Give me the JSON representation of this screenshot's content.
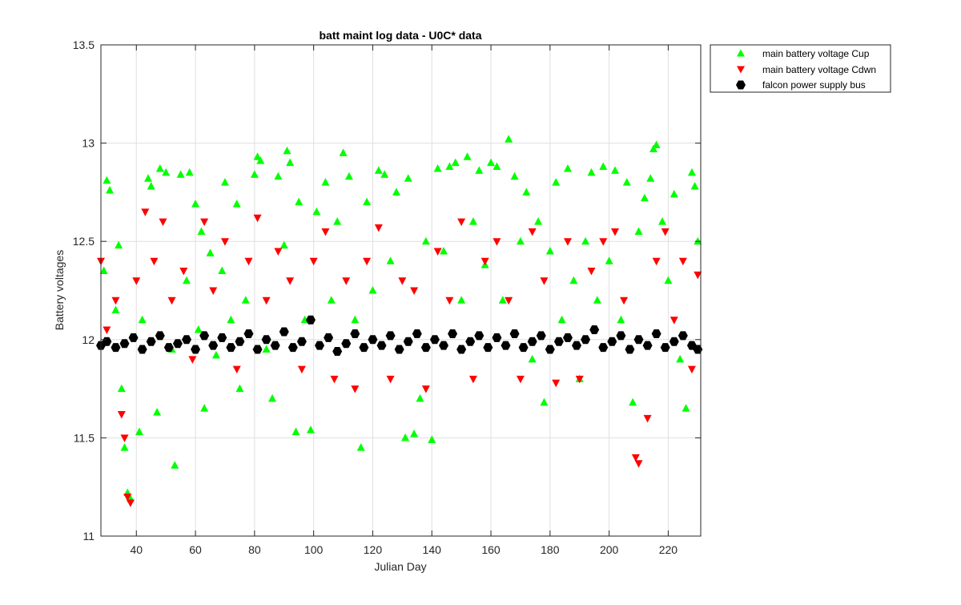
{
  "chart_data": {
    "type": "scatter",
    "title": "batt maint log data - U0C* data",
    "xlabel": "Julian Day",
    "ylabel": "Battery voltages",
    "xlim": [
      28,
      231
    ],
    "ylim": [
      11,
      13.5
    ],
    "xticks": [
      "40",
      "60",
      "80",
      "100",
      "120",
      "140",
      "160",
      "180",
      "200",
      "220"
    ],
    "yticks": [
      "11",
      "11.5",
      "12",
      "12.5",
      "13",
      "13.5"
    ],
    "grid": true,
    "legend_position": "outside-top-right",
    "series": [
      {
        "name": "main battery voltage Cup",
        "marker": "triangle-up",
        "color": "#00ff00",
        "points": [
          [
            29,
            12.35
          ],
          [
            30,
            12.81
          ],
          [
            31,
            12.76
          ],
          [
            33,
            12.15
          ],
          [
            34,
            12.48
          ],
          [
            35,
            11.75
          ],
          [
            36,
            11.45
          ],
          [
            37,
            11.22
          ],
          [
            38,
            11.19
          ],
          [
            41,
            11.53
          ],
          [
            42,
            12.1
          ],
          [
            44,
            12.82
          ],
          [
            45,
            12.78
          ],
          [
            47,
            11.63
          ],
          [
            48,
            12.87
          ],
          [
            50,
            12.85
          ],
          [
            52,
            11.95
          ],
          [
            53,
            11.36
          ],
          [
            55,
            12.84
          ],
          [
            57,
            12.3
          ],
          [
            58,
            12.85
          ],
          [
            60,
            12.69
          ],
          [
            61,
            12.05
          ],
          [
            62,
            12.55
          ],
          [
            63,
            11.65
          ],
          [
            65,
            12.44
          ],
          [
            67,
            11.92
          ],
          [
            69,
            12.35
          ],
          [
            70,
            12.8
          ],
          [
            72,
            12.1
          ],
          [
            74,
            12.69
          ],
          [
            75,
            11.75
          ],
          [
            77,
            12.2
          ],
          [
            80,
            12.84
          ],
          [
            81,
            12.93
          ],
          [
            82,
            12.91
          ],
          [
            84,
            11.95
          ],
          [
            86,
            11.7
          ],
          [
            88,
            12.83
          ],
          [
            90,
            12.48
          ],
          [
            91,
            12.96
          ],
          [
            92,
            12.9
          ],
          [
            94,
            11.53
          ],
          [
            95,
            12.7
          ],
          [
            97,
            12.1
          ],
          [
            99,
            11.54
          ],
          [
            101,
            12.65
          ],
          [
            104,
            12.8
          ],
          [
            106,
            12.2
          ],
          [
            108,
            12.6
          ],
          [
            110,
            12.95
          ],
          [
            112,
            12.83
          ],
          [
            114,
            12.1
          ],
          [
            116,
            11.45
          ],
          [
            118,
            12.7
          ],
          [
            120,
            12.25
          ],
          [
            122,
            12.86
          ],
          [
            124,
            12.84
          ],
          [
            126,
            12.4
          ],
          [
            128,
            12.75
          ],
          [
            131,
            11.5
          ],
          [
            132,
            12.82
          ],
          [
            134,
            11.52
          ],
          [
            136,
            11.7
          ],
          [
            138,
            12.5
          ],
          [
            140,
            11.49
          ],
          [
            142,
            12.87
          ],
          [
            144,
            12.45
          ],
          [
            146,
            12.88
          ],
          [
            148,
            12.9
          ],
          [
            150,
            12.2
          ],
          [
            152,
            12.93
          ],
          [
            154,
            12.6
          ],
          [
            156,
            12.86
          ],
          [
            158,
            12.38
          ],
          [
            160,
            12.9
          ],
          [
            162,
            12.88
          ],
          [
            164,
            12.2
          ],
          [
            166,
            13.02
          ],
          [
            168,
            12.83
          ],
          [
            170,
            12.5
          ],
          [
            172,
            12.75
          ],
          [
            174,
            11.9
          ],
          [
            176,
            12.6
          ],
          [
            178,
            11.68
          ],
          [
            180,
            12.45
          ],
          [
            182,
            12.8
          ],
          [
            184,
            12.1
          ],
          [
            186,
            12.87
          ],
          [
            188,
            12.3
          ],
          [
            190,
            11.8
          ],
          [
            192,
            12.5
          ],
          [
            194,
            12.85
          ],
          [
            196,
            12.2
          ],
          [
            198,
            12.88
          ],
          [
            200,
            12.4
          ],
          [
            202,
            12.86
          ],
          [
            204,
            12.1
          ],
          [
            206,
            12.8
          ],
          [
            208,
            11.68
          ],
          [
            210,
            12.55
          ],
          [
            212,
            12.72
          ],
          [
            214,
            12.82
          ],
          [
            215,
            12.97
          ],
          [
            216,
            12.99
          ],
          [
            218,
            12.6
          ],
          [
            220,
            12.3
          ],
          [
            222,
            12.74
          ],
          [
            224,
            11.9
          ],
          [
            226,
            11.65
          ],
          [
            228,
            12.85
          ],
          [
            229,
            12.78
          ],
          [
            230,
            12.5
          ]
        ]
      },
      {
        "name": "main battery voltage Cdwn",
        "marker": "triangle-down",
        "color": "#ff0000",
        "points": [
          [
            28,
            12.4
          ],
          [
            30,
            12.05
          ],
          [
            33,
            12.2
          ],
          [
            35,
            11.62
          ],
          [
            36,
            11.5
          ],
          [
            37,
            11.2
          ],
          [
            38,
            11.17
          ],
          [
            40,
            12.3
          ],
          [
            43,
            12.65
          ],
          [
            46,
            12.4
          ],
          [
            49,
            12.6
          ],
          [
            52,
            12.2
          ],
          [
            56,
            12.35
          ],
          [
            59,
            11.9
          ],
          [
            63,
            12.6
          ],
          [
            66,
            12.25
          ],
          [
            70,
            12.5
          ],
          [
            74,
            11.85
          ],
          [
            78,
            12.4
          ],
          [
            81,
            12.62
          ],
          [
            84,
            12.2
          ],
          [
            88,
            12.45
          ],
          [
            92,
            12.3
          ],
          [
            96,
            11.85
          ],
          [
            100,
            12.4
          ],
          [
            104,
            12.55
          ],
          [
            107,
            11.8
          ],
          [
            111,
            12.3
          ],
          [
            114,
            11.75
          ],
          [
            118,
            12.4
          ],
          [
            122,
            12.57
          ],
          [
            126,
            11.8
          ],
          [
            130,
            12.3
          ],
          [
            134,
            12.25
          ],
          [
            138,
            11.75
          ],
          [
            142,
            12.45
          ],
          [
            146,
            12.2
          ],
          [
            150,
            12.6
          ],
          [
            154,
            11.8
          ],
          [
            158,
            12.4
          ],
          [
            162,
            12.5
          ],
          [
            166,
            12.2
          ],
          [
            170,
            11.8
          ],
          [
            174,
            12.55
          ],
          [
            178,
            12.3
          ],
          [
            182,
            11.78
          ],
          [
            186,
            12.5
          ],
          [
            190,
            11.8
          ],
          [
            194,
            12.35
          ],
          [
            198,
            12.5
          ],
          [
            202,
            12.55
          ],
          [
            205,
            12.2
          ],
          [
            209,
            11.4
          ],
          [
            210,
            11.37
          ],
          [
            213,
            11.6
          ],
          [
            216,
            12.4
          ],
          [
            219,
            12.55
          ],
          [
            222,
            12.1
          ],
          [
            225,
            12.4
          ],
          [
            228,
            11.85
          ],
          [
            230,
            12.33
          ]
        ]
      },
      {
        "name": "falcon power supply bus",
        "marker": "hexagon",
        "color": "#000000",
        "points": [
          [
            28,
            11.97
          ],
          [
            30,
            11.99
          ],
          [
            33,
            11.96
          ],
          [
            36,
            11.98
          ],
          [
            39,
            12.01
          ],
          [
            42,
            11.95
          ],
          [
            45,
            11.99
          ],
          [
            48,
            12.02
          ],
          [
            51,
            11.96
          ],
          [
            54,
            11.98
          ],
          [
            57,
            12.0
          ],
          [
            60,
            11.95
          ],
          [
            63,
            12.02
          ],
          [
            66,
            11.97
          ],
          [
            69,
            12.01
          ],
          [
            72,
            11.96
          ],
          [
            75,
            11.99
          ],
          [
            78,
            12.03
          ],
          [
            81,
            11.95
          ],
          [
            84,
            12.0
          ],
          [
            87,
            11.97
          ],
          [
            90,
            12.04
          ],
          [
            93,
            11.96
          ],
          [
            96,
            11.99
          ],
          [
            99,
            12.1
          ],
          [
            102,
            11.97
          ],
          [
            105,
            12.01
          ],
          [
            108,
            11.94
          ],
          [
            111,
            11.98
          ],
          [
            114,
            12.03
          ],
          [
            117,
            11.96
          ],
          [
            120,
            12.0
          ],
          [
            123,
            11.97
          ],
          [
            126,
            12.02
          ],
          [
            129,
            11.95
          ],
          [
            132,
            11.99
          ],
          [
            135,
            12.03
          ],
          [
            138,
            11.96
          ],
          [
            141,
            12.0
          ],
          [
            144,
            11.97
          ],
          [
            147,
            12.03
          ],
          [
            150,
            11.95
          ],
          [
            153,
            11.99
          ],
          [
            156,
            12.02
          ],
          [
            159,
            11.96
          ],
          [
            162,
            12.01
          ],
          [
            165,
            11.97
          ],
          [
            168,
            12.03
          ],
          [
            171,
            11.96
          ],
          [
            174,
            11.99
          ],
          [
            177,
            12.02
          ],
          [
            180,
            11.95
          ],
          [
            183,
            11.99
          ],
          [
            186,
            12.01
          ],
          [
            189,
            11.97
          ],
          [
            192,
            12.0
          ],
          [
            195,
            12.05
          ],
          [
            198,
            11.96
          ],
          [
            201,
            11.99
          ],
          [
            204,
            12.02
          ],
          [
            207,
            11.95
          ],
          [
            210,
            12.0
          ],
          [
            213,
            11.97
          ],
          [
            216,
            12.03
          ],
          [
            219,
            11.96
          ],
          [
            222,
            11.99
          ],
          [
            225,
            12.02
          ],
          [
            228,
            11.97
          ],
          [
            230,
            11.95
          ]
        ]
      }
    ]
  }
}
